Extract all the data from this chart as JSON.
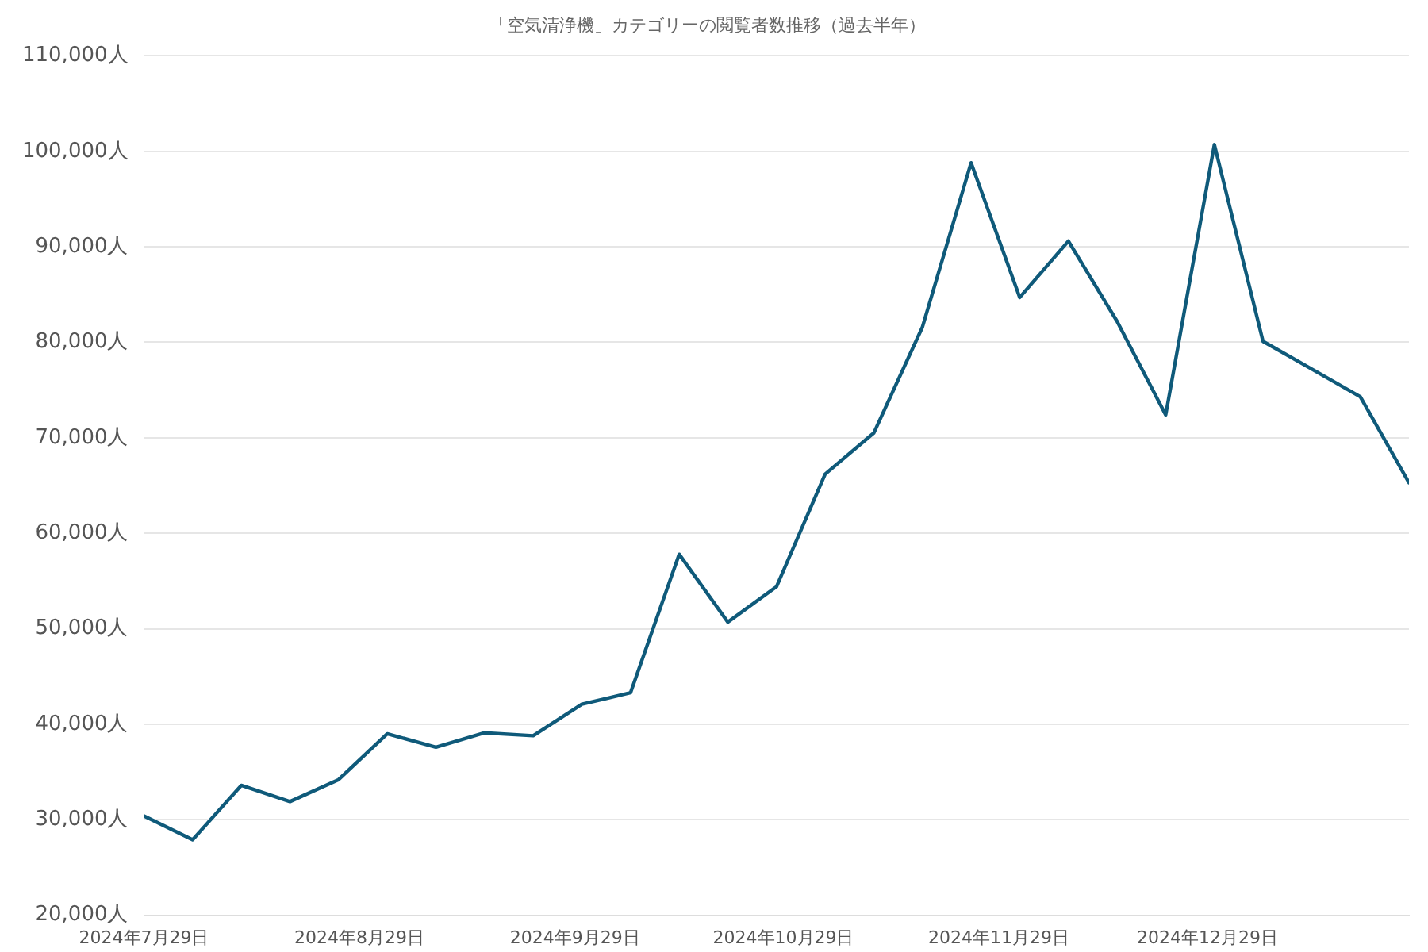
{
  "chart_data": {
    "type": "line",
    "title": "「空気清浄機」カテゴリーの閲覧者数推移（過去半年）",
    "x": [
      "2024-07-29",
      "2024-08-05",
      "2024-08-12",
      "2024-08-19",
      "2024-08-26",
      "2024-09-02",
      "2024-09-09",
      "2024-09-16",
      "2024-09-23",
      "2024-09-30",
      "2024-10-07",
      "2024-10-14",
      "2024-10-21",
      "2024-10-28",
      "2024-11-04",
      "2024-11-11",
      "2024-11-18",
      "2024-11-25",
      "2024-12-02",
      "2024-12-09",
      "2024-12-16",
      "2024-12-23",
      "2024-12-30",
      "2025-01-06",
      "2025-01-13",
      "2025-01-20",
      "2025-01-27"
    ],
    "series": [
      {
        "color": "#0f5a7a",
        "values": [
          30400,
          27900,
          33600,
          31900,
          34200,
          39000,
          37600,
          39100,
          38800,
          42100,
          43300,
          57800,
          50700,
          54400,
          66200,
          70500,
          81600,
          98800,
          84700,
          90600,
          82200,
          72400,
          100700,
          80100,
          77200,
          74300,
          65300
        ]
      }
    ],
    "xlim": [
      "2024-07-29",
      "2025-01-27"
    ],
    "xticks": [
      {
        "value": "2024-07-29",
        "label": "2024年7月29日"
      },
      {
        "value": "2024-08-29",
        "label": "2024年8月29日"
      },
      {
        "value": "2024-09-29",
        "label": "2024年9月29日"
      },
      {
        "value": "2024-10-29",
        "label": "2024年10月29日"
      },
      {
        "value": "2024-11-29",
        "label": "2024年11月29日"
      },
      {
        "value": "2024-12-29",
        "label": "2024年12月29日"
      }
    ],
    "ylim": [
      20000,
      110000
    ],
    "yticks": [
      {
        "value": 20000,
        "label": "20,000人"
      },
      {
        "value": 30000,
        "label": "30,000人"
      },
      {
        "value": 40000,
        "label": "40,000人"
      },
      {
        "value": 50000,
        "label": "50,000人"
      },
      {
        "value": 60000,
        "label": "60,000人"
      },
      {
        "value": 70000,
        "label": "70,000人"
      },
      {
        "value": 80000,
        "label": "80,000人"
      },
      {
        "value": 90000,
        "label": "90,000人"
      },
      {
        "value": 100000,
        "label": "100,000人"
      },
      {
        "value": 110000,
        "label": "110,000人"
      }
    ],
    "grid": "y",
    "legend": false,
    "marker": "none",
    "line_style": "solid"
  }
}
